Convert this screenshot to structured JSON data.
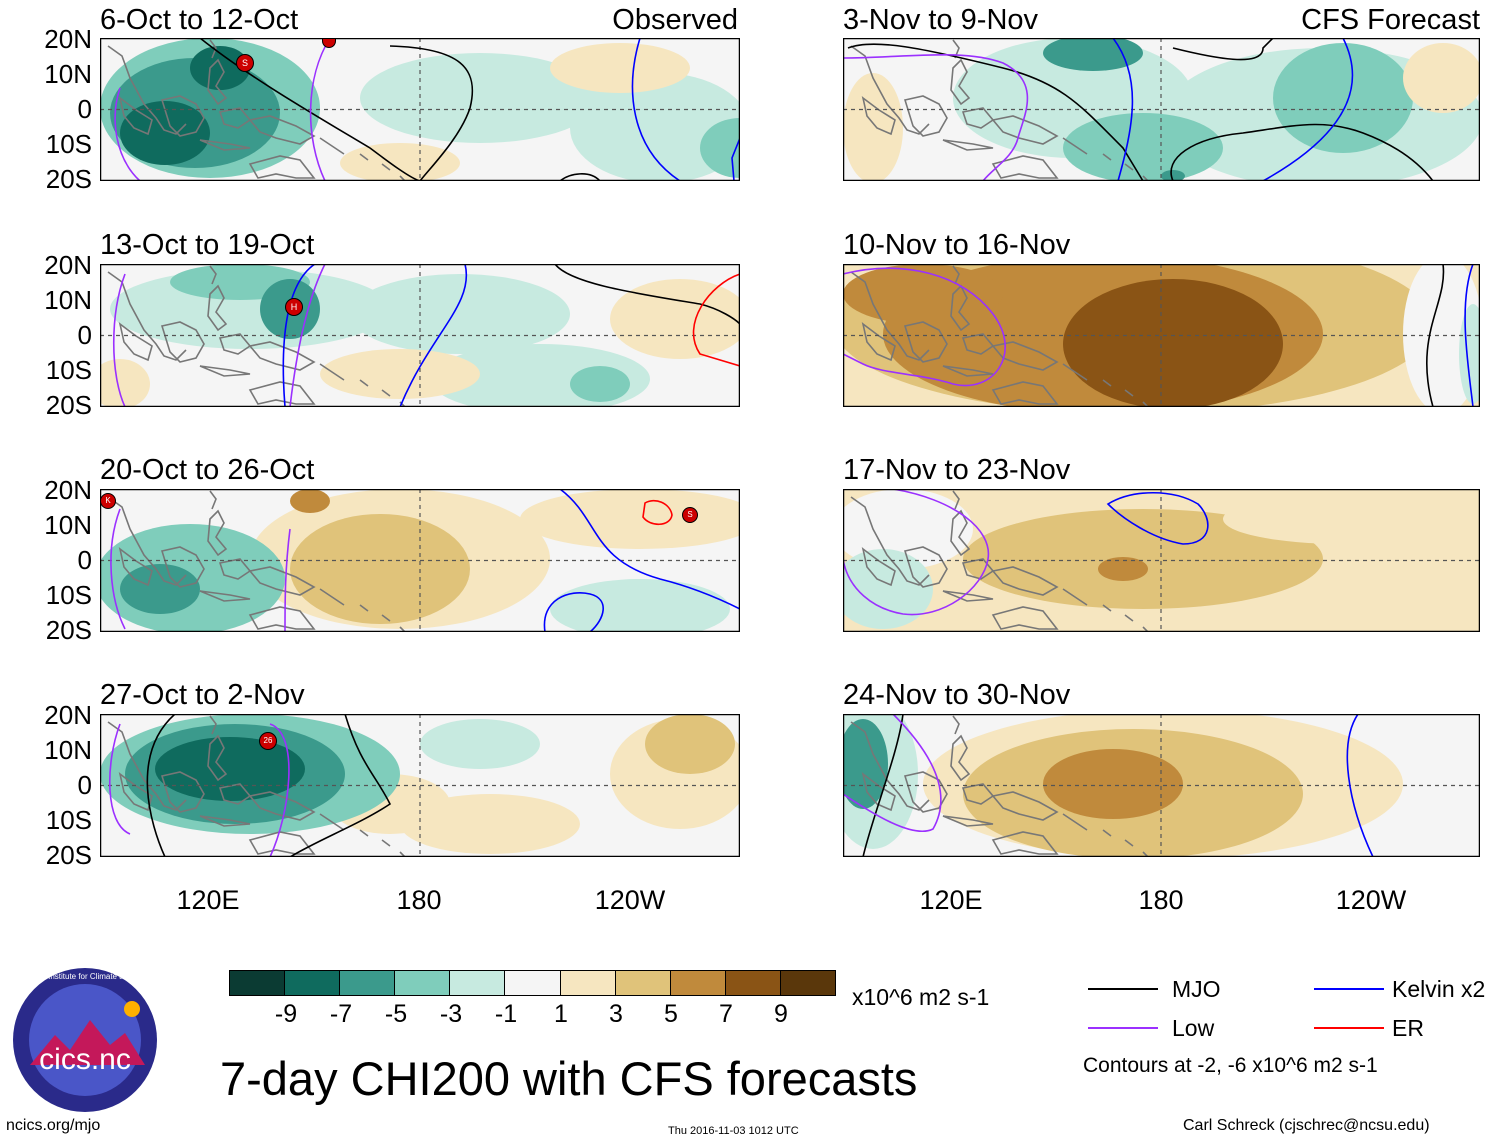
{
  "figure": {
    "main_title": "7-day CHI200 with CFS forecasts",
    "units": "x10^6 m2 s-1",
    "contours_note": "Contours at -2, -6 x10^6 m2 s-1",
    "footer_url": "ncics.org/mjo",
    "footer_date": "Thu 2016-11-03 1012 UTC",
    "footer_author": "Carl Schreck (cjschrec@ncsu.edu)",
    "logo_text": "cics.nc",
    "logo_ring_text": "Cooperative Institute for Climate and Satellites"
  },
  "axes": {
    "lat_labels": [
      "20N",
      "10N",
      "0",
      "10S",
      "20S"
    ],
    "lon_labels": [
      "120E",
      "180",
      "120W"
    ]
  },
  "colorbar": {
    "tick_labels": [
      "-9",
      "-7",
      "-5",
      "-3",
      "-1",
      "1",
      "3",
      "5",
      "7",
      "9"
    ],
    "colors": [
      "#0b3b33",
      "#0f6b5e",
      "#3b9a8c",
      "#7fcdbb",
      "#c7eae0",
      "#f5f5f5",
      "#f6e6c0",
      "#e0c37a",
      "#c08a3c",
      "#8a5415",
      "#5a370b"
    ]
  },
  "legend": [
    {
      "label": "MJO",
      "color": "#000000"
    },
    {
      "label": "Kelvin x2",
      "color": "#0000ff"
    },
    {
      "label": "Low",
      "color": "#9b30ff"
    },
    {
      "label": "ER",
      "color": "#ff0000"
    }
  ],
  "panels": {
    "p0": {
      "title": "6-Oct to 12-Oct",
      "tag": "Observed"
    },
    "p1": {
      "title": "13-Oct to 19-Oct",
      "tag": ""
    },
    "p2": {
      "title": "20-Oct to 26-Oct",
      "tag": ""
    },
    "p3": {
      "title": "27-Oct to 2-Nov",
      "tag": ""
    },
    "p4": {
      "title": "3-Nov to 9-Nov",
      "tag": "CFS Forecast"
    },
    "p5": {
      "title": "10-Nov to 16-Nov",
      "tag": ""
    },
    "p6": {
      "title": "17-Nov to 23-Nov",
      "tag": ""
    },
    "p7": {
      "title": "24-Nov to 30-Nov",
      "tag": ""
    }
  },
  "storm_labels": {
    "p0_a": "S",
    "p0_b": "",
    "p1_a": "H",
    "p2_a": "K",
    "p2_b": "S",
    "p3_a": "26"
  },
  "palette": {
    "frame": "#000000",
    "coast": "#777777",
    "mjo": "#000000",
    "kelvin": "#0000ff",
    "low": "#9b30ff",
    "er": "#ff0000",
    "storm": "#cc0000"
  }
}
